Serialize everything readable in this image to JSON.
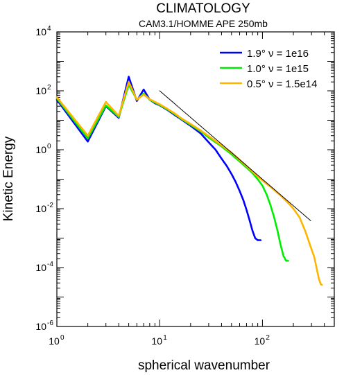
{
  "chart_data": {
    "type": "line",
    "title": "CLIMATOLOGY",
    "subtitle": "CAM3.1/HOMME APE  250mb",
    "xlabel": "spherical wavenumber",
    "ylabel": "Kinetic Energy",
    "xscale": "log",
    "yscale": "log",
    "xlim": [
      1,
      500
    ],
    "ylim": [
      1e-06,
      10000
    ],
    "xticks": [
      {
        "value": 1,
        "base": "10",
        "exp": "0"
      },
      {
        "value": 10,
        "base": "10",
        "exp": "1"
      },
      {
        "value": 100,
        "base": "10",
        "exp": "2"
      }
    ],
    "yticks": [
      {
        "value": 1e-06,
        "base": "10",
        "exp": "-6"
      },
      {
        "value": 0.0001,
        "base": "10",
        "exp": "-4"
      },
      {
        "value": 0.01,
        "base": "10",
        "exp": "-2"
      },
      {
        "value": 1,
        "base": "10",
        "exp": "0"
      },
      {
        "value": 100,
        "base": "10",
        "exp": "2"
      },
      {
        "value": 10000,
        "base": "10",
        "exp": "4"
      }
    ],
    "legend_position": "top-right",
    "series": [
      {
        "name": "1.9°  ν = 1e16",
        "color": "#0000ff",
        "points": [
          [
            1,
            50
          ],
          [
            2,
            1.9
          ],
          [
            3,
            30
          ],
          [
            4,
            12
          ],
          [
            5,
            300
          ],
          [
            6,
            45
          ],
          [
            7,
            110
          ],
          [
            8,
            50
          ],
          [
            9,
            38
          ],
          [
            10,
            32
          ],
          [
            12,
            22
          ],
          [
            14,
            15
          ],
          [
            16,
            11
          ],
          [
            20,
            6.5
          ],
          [
            25,
            3.6
          ],
          [
            30,
            1.8
          ],
          [
            35,
            1.0
          ],
          [
            40,
            0.5
          ],
          [
            45,
            0.28
          ],
          [
            50,
            0.15
          ],
          [
            55,
            0.08
          ],
          [
            60,
            0.04
          ],
          [
            65,
            0.02
          ],
          [
            70,
            0.009
          ],
          [
            75,
            0.004
          ],
          [
            80,
            0.0018
          ],
          [
            85,
            0.001
          ],
          [
            90,
            0.00085
          ],
          [
            96,
            0.00085
          ]
        ]
      },
      {
        "name": "1.0°  ν = 1e15",
        "color": "#00ee00",
        "points": [
          [
            1,
            55
          ],
          [
            2,
            2.4
          ],
          [
            3,
            32
          ],
          [
            4,
            13
          ],
          [
            5,
            160
          ],
          [
            6,
            50
          ],
          [
            7,
            80
          ],
          [
            8,
            50
          ],
          [
            10,
            33
          ],
          [
            12,
            23
          ],
          [
            14,
            16
          ],
          [
            16,
            11.5
          ],
          [
            20,
            7
          ],
          [
            25,
            4.2
          ],
          [
            30,
            2.6
          ],
          [
            40,
            1.3
          ],
          [
            50,
            0.7
          ],
          [
            60,
            0.4
          ],
          [
            70,
            0.25
          ],
          [
            80,
            0.16
          ],
          [
            90,
            0.1
          ],
          [
            100,
            0.06
          ],
          [
            110,
            0.03
          ],
          [
            120,
            0.013
          ],
          [
            130,
            0.005
          ],
          [
            140,
            0.0018
          ],
          [
            150,
            0.0006
          ],
          [
            160,
            0.00025
          ],
          [
            170,
            0.00017
          ],
          [
            178,
            0.00017
          ]
        ]
      },
      {
        "name": "0.5°  ν = 1.5e14",
        "color": "#ffb400",
        "points": [
          [
            1,
            60
          ],
          [
            2,
            3.0
          ],
          [
            3,
            42
          ],
          [
            4,
            14
          ],
          [
            5,
            200
          ],
          [
            6,
            50
          ],
          [
            7,
            75
          ],
          [
            8,
            52
          ],
          [
            10,
            35
          ],
          [
            12,
            24
          ],
          [
            14,
            17
          ],
          [
            16,
            12
          ],
          [
            20,
            7.5
          ],
          [
            25,
            4.5
          ],
          [
            30,
            2.9
          ],
          [
            40,
            1.4
          ],
          [
            50,
            0.8
          ],
          [
            60,
            0.45
          ],
          [
            70,
            0.28
          ],
          [
            80,
            0.18
          ],
          [
            100,
            0.09
          ],
          [
            120,
            0.055
          ],
          [
            150,
            0.028
          ],
          [
            180,
            0.015
          ],
          [
            200,
            0.01
          ],
          [
            230,
            0.005
          ],
          [
            260,
            0.0018
          ],
          [
            290,
            0.0006
          ],
          [
            320,
            0.00022
          ],
          [
            340,
            8e-05
          ],
          [
            355,
            4e-05
          ],
          [
            370,
            2.7e-05
          ],
          [
            380,
            2.6e-05
          ]
        ]
      },
      {
        "name": "",
        "color": "#000000",
        "points": [
          [
            10,
            100
          ],
          [
            295,
            0.0039
          ]
        ]
      }
    ]
  }
}
